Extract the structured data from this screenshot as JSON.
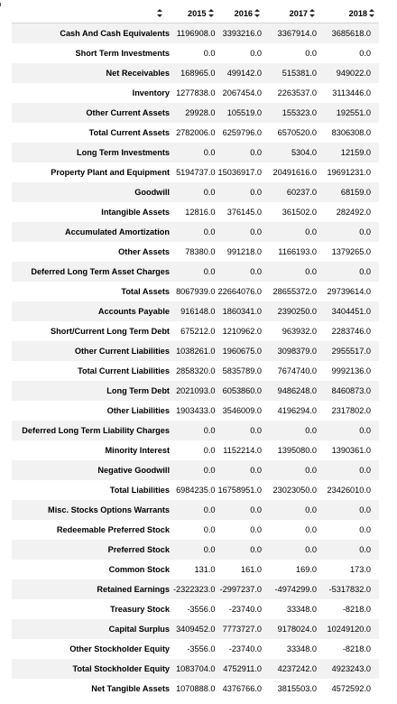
{
  "table": {
    "columns": [
      "2015",
      "2016",
      "2017",
      "2018"
    ],
    "rows": [
      {
        "label": "Cash And Cash Equivalents",
        "values": [
          "1196908.0",
          "3393216.0",
          "3367914.0",
          "3685618.0"
        ]
      },
      {
        "label": "Short Term Investments",
        "values": [
          "0.0",
          "0.0",
          "0.0",
          "0.0"
        ]
      },
      {
        "label": "Net Receivables",
        "values": [
          "168965.0",
          "499142.0",
          "515381.0",
          "949022.0"
        ]
      },
      {
        "label": "Inventory",
        "values": [
          "1277838.0",
          "2067454.0",
          "2263537.0",
          "3113446.0"
        ]
      },
      {
        "label": "Other Current Assets",
        "values": [
          "29928.0",
          "105519.0",
          "155323.0",
          "192551.0"
        ]
      },
      {
        "label": "Total Current Assets",
        "values": [
          "2782006.0",
          "6259796.0",
          "6570520.0",
          "8306308.0"
        ]
      },
      {
        "label": "Long Term Investments",
        "values": [
          "0.0",
          "0.0",
          "5304.0",
          "12159.0"
        ]
      },
      {
        "label": "Property Plant and Equipment",
        "values": [
          "5194737.0",
          "15036917.0",
          "20491616.0",
          "19691231.0"
        ]
      },
      {
        "label": "Goodwill",
        "values": [
          "0.0",
          "0.0",
          "60237.0",
          "68159.0"
        ]
      },
      {
        "label": "Intangible Assets",
        "values": [
          "12816.0",
          "376145.0",
          "361502.0",
          "282492.0"
        ]
      },
      {
        "label": "Accumulated Amortization",
        "values": [
          "0.0",
          "0.0",
          "0.0",
          "0.0"
        ]
      },
      {
        "label": "Other Assets",
        "values": [
          "78380.0",
          "991218.0",
          "1166193.0",
          "1379265.0"
        ]
      },
      {
        "label": "Deferred Long Term Asset Charges",
        "values": [
          "0.0",
          "0.0",
          "0.0",
          "0.0"
        ]
      },
      {
        "label": "Total Assets",
        "values": [
          "8067939.0",
          "22664076.0",
          "28655372.0",
          "29739614.0"
        ]
      },
      {
        "label": "Accounts Payable",
        "values": [
          "916148.0",
          "1860341.0",
          "2390250.0",
          "3404451.0"
        ]
      },
      {
        "label": "Short/Current Long Term Debt",
        "values": [
          "675212.0",
          "1210962.0",
          "963932.0",
          "2283746.0"
        ]
      },
      {
        "label": "Other Current Liabilities",
        "values": [
          "1038261.0",
          "1960675.0",
          "3098379.0",
          "2955517.0"
        ]
      },
      {
        "label": "Total Current Liabilities",
        "values": [
          "2858320.0",
          "5835789.0",
          "7674740.0",
          "9992136.0"
        ]
      },
      {
        "label": "Long Term Debt",
        "values": [
          "2021093.0",
          "6053860.0",
          "9486248.0",
          "8460873.0"
        ]
      },
      {
        "label": "Other Liabilities",
        "values": [
          "1903433.0",
          "3546009.0",
          "4196294.0",
          "2317802.0"
        ]
      },
      {
        "label": "Deferred Long Term Liability Charges",
        "values": [
          "0.0",
          "0.0",
          "0.0",
          "0.0"
        ]
      },
      {
        "label": "Minority Interest",
        "values": [
          "0.0",
          "1152214.0",
          "1395080.0",
          "1390361.0"
        ]
      },
      {
        "label": "Negative Goodwill",
        "values": [
          "0.0",
          "0.0",
          "0.0",
          "0.0"
        ]
      },
      {
        "label": "Total Liabilities",
        "values": [
          "6984235.0",
          "16758951.0",
          "23023050.0",
          "23426010.0"
        ]
      },
      {
        "label": "Misc. Stocks Options Warrants",
        "values": [
          "0.0",
          "0.0",
          "0.0",
          "0.0"
        ]
      },
      {
        "label": "Redeemable Preferred Stock",
        "values": [
          "0.0",
          "0.0",
          "0.0",
          "0.0"
        ]
      },
      {
        "label": "Preferred Stock",
        "values": [
          "0.0",
          "0.0",
          "0.0",
          "0.0"
        ]
      },
      {
        "label": "Common Stock",
        "values": [
          "131.0",
          "161.0",
          "169.0",
          "173.0"
        ]
      },
      {
        "label": "Retained Earnings",
        "values": [
          "-2322323.0",
          "-2997237.0",
          "-4974299.0",
          "-5317832.0"
        ]
      },
      {
        "label": "Treasury Stock",
        "values": [
          "-3556.0",
          "-23740.0",
          "33348.0",
          "-8218.0"
        ]
      },
      {
        "label": "Capital Surplus",
        "values": [
          "3409452.0",
          "7773727.0",
          "9178024.0",
          "10249120.0"
        ]
      },
      {
        "label": "Other Stockholder Equity",
        "values": [
          "-3556.0",
          "-23740.0",
          "33348.0",
          "-8218.0"
        ]
      },
      {
        "label": "Total Stockholder Equity",
        "values": [
          "1083704.0",
          "4752911.0",
          "4237242.0",
          "4923243.0"
        ]
      },
      {
        "label": "Net Tangible Assets",
        "values": [
          "1070888.0",
          "4376766.0",
          "3815503.0",
          "4572592.0"
        ]
      }
    ]
  }
}
